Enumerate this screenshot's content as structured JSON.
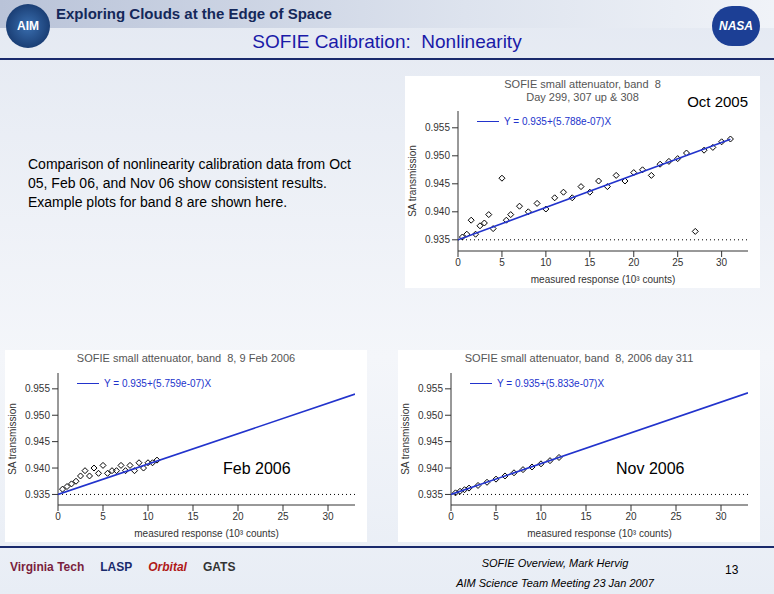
{
  "slide": {
    "header": "Exploring Clouds at the Edge of Space",
    "logo_left": "AIM",
    "logo_right": "NASA",
    "title": "SOFIE Calibration:  Nonlinearity",
    "text": "Comparison of nonlinearity calibration data from Oct 05, Feb 06, and Nov 06 show consistent results.  Example plots for band 8 are shown here.",
    "footer": {
      "logos": [
        "Virginia Tech",
        "LASP",
        "Orbital",
        "GATS"
      ],
      "author": "SOFIE Overview, Mark Hervig",
      "meeting": "AIM Science Team Meeting 23 Jan 2007",
      "page": 13
    }
  },
  "chart_data": [
    {
      "type": "scatter",
      "title": "SOFIE small attenuator, band  8",
      "subtitle": "Day 299, 307 up & 308",
      "annotation": "Oct 2005",
      "x_label": "measured response (10³ counts)",
      "y_label": "SA transmission",
      "xlim": [
        0,
        33
      ],
      "xticks": [
        0,
        5,
        10,
        15,
        20,
        25,
        30
      ],
      "ylim": [
        0.933,
        0.958
      ],
      "yticks": [
        0.935,
        {
          "value": 0.94,
          "label": "0.940"
        },
        0.945,
        {
          "value": 0.95,
          "label": "0.950"
        },
        0.955
      ],
      "reference_y": 0.935,
      "legend": "upper left",
      "series": [
        {
          "type": "scatter",
          "marker": "diamond",
          "color": "#000000",
          "x": [
            0.5,
            1,
            1.5,
            2,
            2.5,
            3,
            3.5,
            4,
            5,
            5.5,
            6,
            7,
            8,
            9,
            10,
            11,
            12,
            13,
            14,
            15,
            16,
            17,
            18,
            19,
            20,
            21,
            22,
            23,
            24,
            25,
            26,
            27,
            28,
            29,
            30,
            31
          ],
          "values": [
            0.9355,
            0.936,
            0.9385,
            0.936,
            0.9375,
            0.938,
            0.9395,
            0.937,
            0.946,
            0.9385,
            0.9395,
            0.941,
            0.94,
            0.9415,
            0.9405,
            0.9425,
            0.9435,
            0.9425,
            0.9445,
            0.9435,
            0.9455,
            0.9445,
            0.9465,
            0.9455,
            0.947,
            0.9475,
            0.9465,
            0.9485,
            0.949,
            0.9495,
            0.9505,
            0.9365,
            0.951,
            0.9515,
            0.9525,
            0.953
          ]
        },
        {
          "type": "line",
          "name": "Y = 0.935+(5.788e-07)X",
          "color": "#2233cc",
          "x": [
            0,
            31
          ],
          "values": [
            0.935,
            0.95294
          ]
        }
      ]
    },
    {
      "type": "scatter",
      "title": "SOFIE small attenuator, band  8, 9 Feb 2006",
      "annotation": "Feb 2006",
      "x_label": "measured response (10³ counts)",
      "y_label": "SA transmission",
      "xlim": [
        0,
        33
      ],
      "xticks": [
        0,
        5,
        10,
        15,
        20,
        25,
        30
      ],
      "ylim": [
        0.933,
        0.958
      ],
      "yticks": [
        0.935,
        {
          "value": 0.94,
          "label": "0.940"
        },
        0.945,
        {
          "value": 0.95,
          "label": "0.950"
        },
        0.955
      ],
      "reference_y": 0.935,
      "legend": "upper left",
      "series": [
        {
          "type": "scatter",
          "marker": "diamond",
          "color": "#000000",
          "x": [
            0.5,
            1,
            1.5,
            2,
            2.5,
            3,
            3.5,
            4,
            4.5,
            5,
            5.5,
            6,
            6.5,
            7,
            7.5,
            8,
            8.5,
            9,
            9.5,
            10,
            10.5,
            11
          ],
          "values": [
            0.936,
            0.9365,
            0.937,
            0.9375,
            0.9385,
            0.9395,
            0.9385,
            0.94,
            0.939,
            0.9405,
            0.939,
            0.9395,
            0.9395,
            0.9405,
            0.9395,
            0.9405,
            0.9395,
            0.941,
            0.94,
            0.941,
            0.941,
            0.9415
          ]
        },
        {
          "type": "line",
          "name": "Y = 0.935+(5.759e-07)X",
          "color": "#2233cc",
          "x": [
            0,
            33
          ],
          "values": [
            0.935,
            0.954
          ]
        }
      ]
    },
    {
      "type": "scatter",
      "title": "SOFIE small attenuator, band  8, 2006 day 311",
      "annotation": "Nov 2006",
      "x_label": "measured response (10³ counts)",
      "y_label": "SA transmission",
      "xlim": [
        0,
        33
      ],
      "xticks": [
        0,
        5,
        10,
        15,
        20,
        25,
        30
      ],
      "ylim": [
        0.933,
        0.958
      ],
      "yticks": [
        0.935,
        {
          "value": 0.94,
          "label": "0.940"
        },
        0.945,
        {
          "value": 0.95,
          "label": "0.950"
        },
        0.955
      ],
      "reference_y": 0.935,
      "legend": "upper left",
      "series": [
        {
          "type": "scatter",
          "marker": "diamond",
          "color": "#000000",
          "x": [
            0.5,
            1,
            1.5,
            2,
            3,
            4,
            5,
            6,
            7,
            8,
            9,
            10,
            11,
            12
          ],
          "values": [
            0.9353,
            0.9356,
            0.9359,
            0.9362,
            0.9367,
            0.9373,
            0.9379,
            0.9385,
            0.9391,
            0.9397,
            0.9402,
            0.9408,
            0.9414,
            0.942
          ]
        },
        {
          "type": "line",
          "name": "Y = 0.935+(5.833e-07)X",
          "color": "#2233cc",
          "x": [
            0,
            33
          ],
          "values": [
            0.935,
            0.95425
          ]
        }
      ]
    }
  ]
}
